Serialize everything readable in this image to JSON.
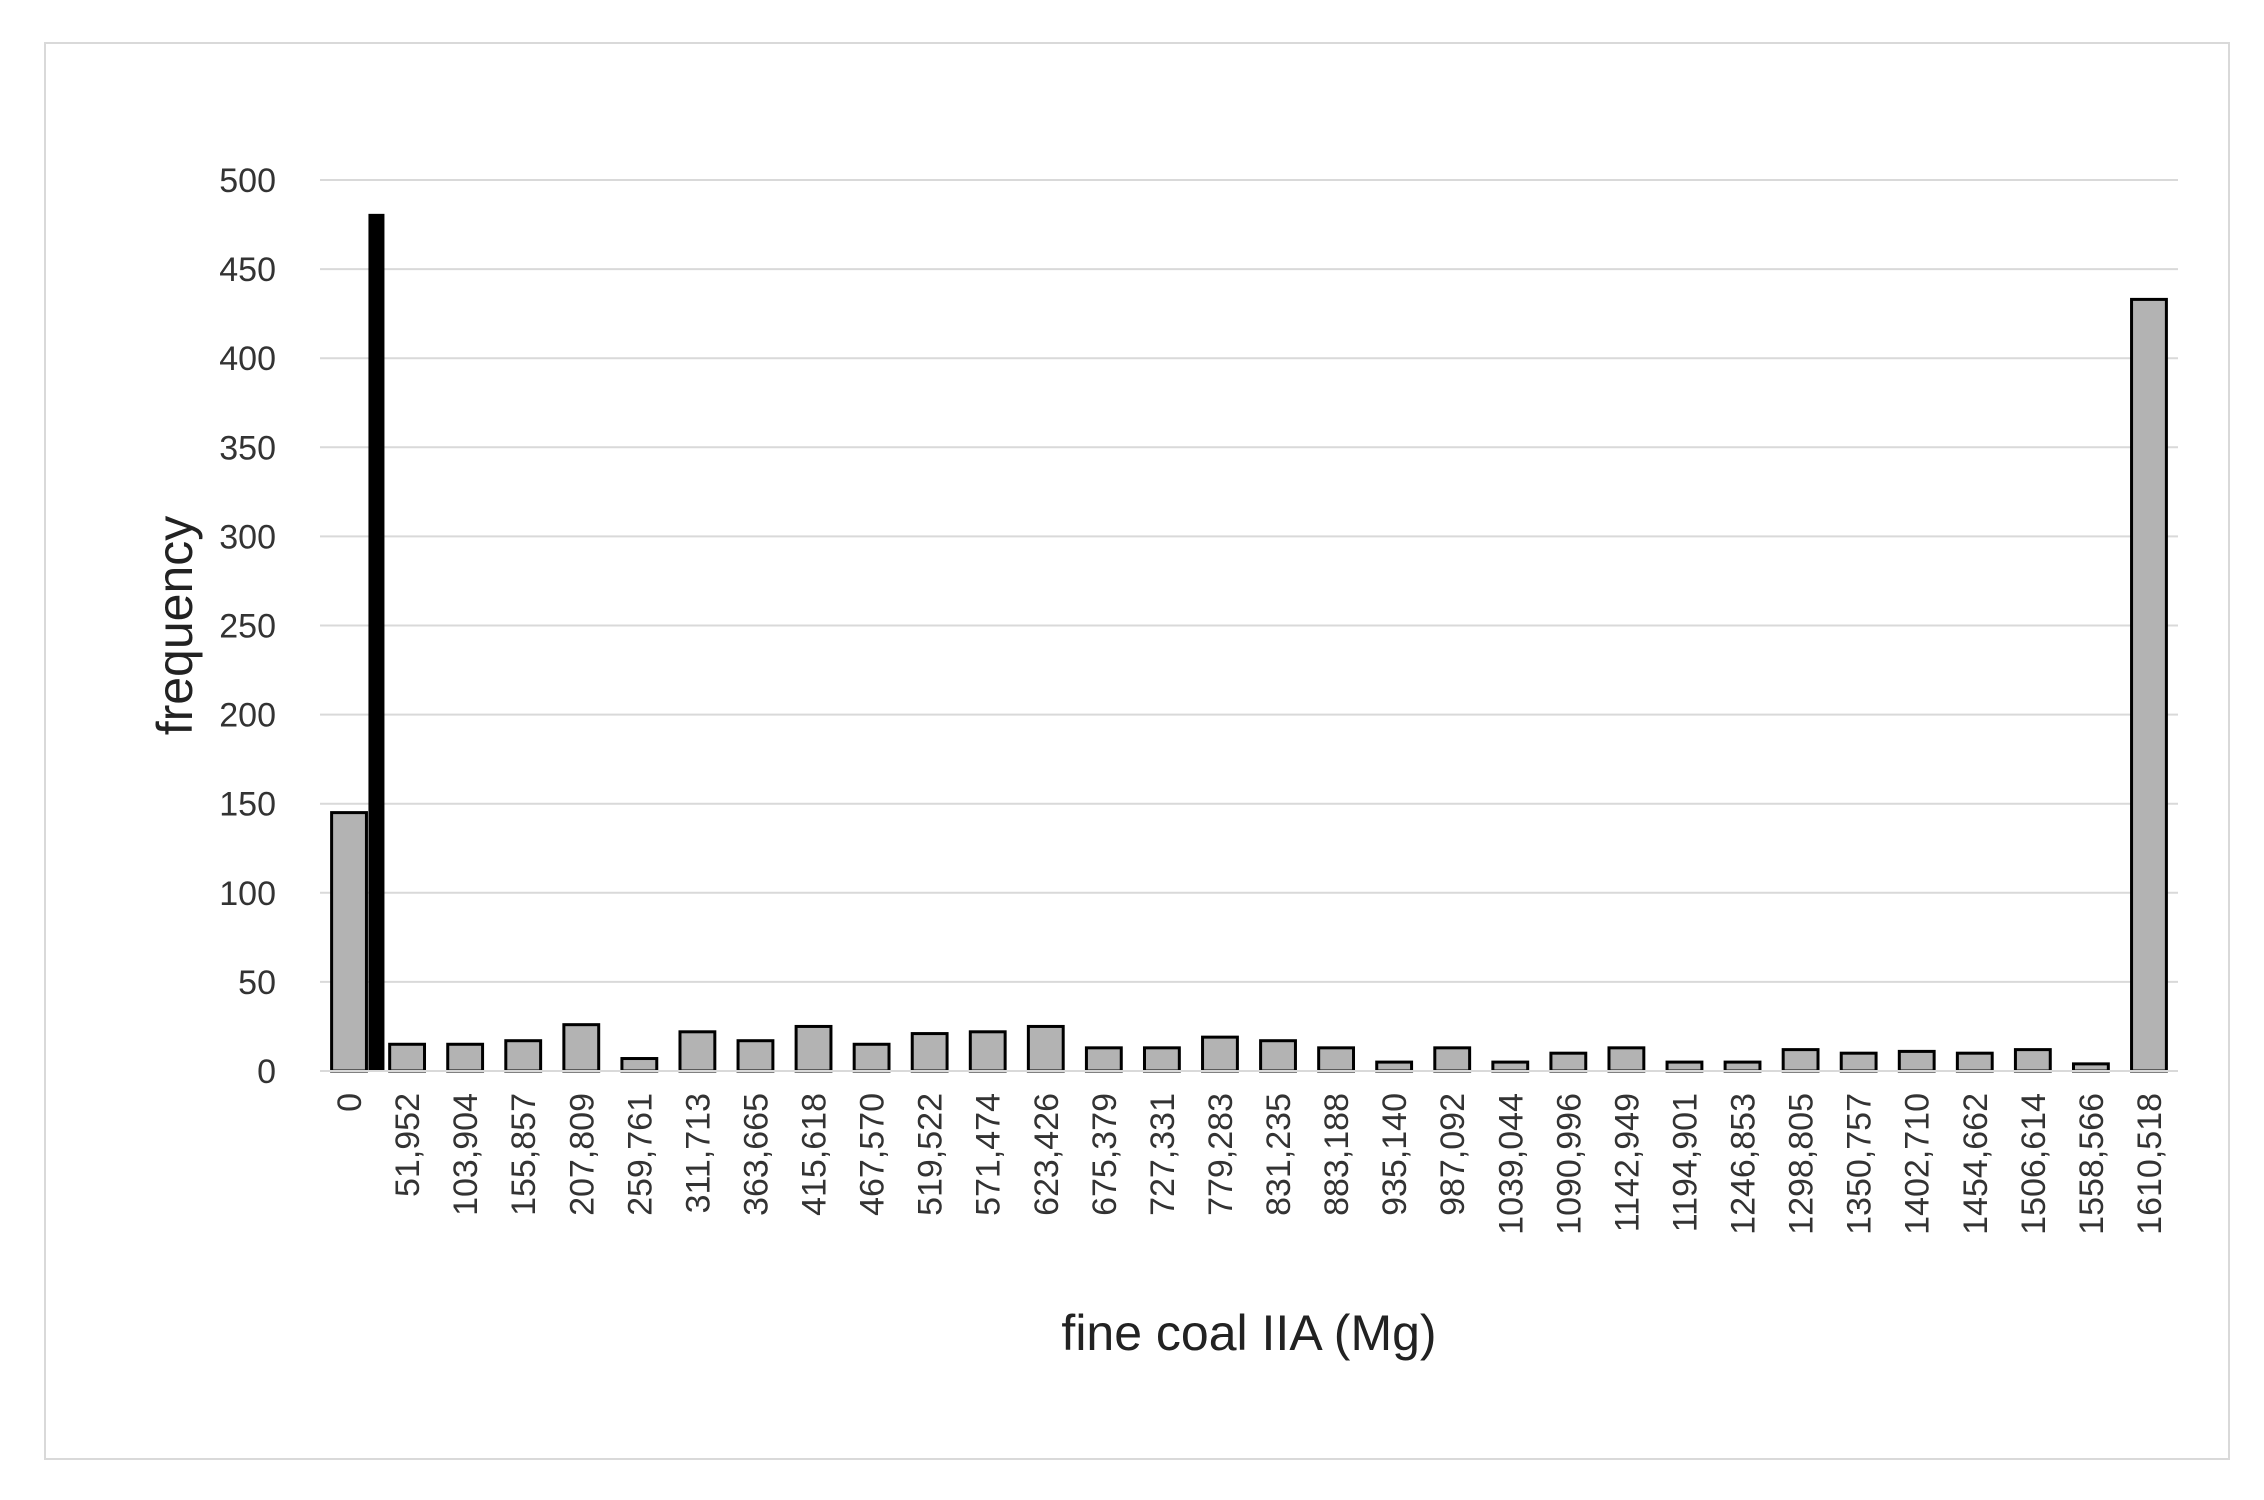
{
  "chart_data": {
    "type": "bar",
    "title": "",
    "xlabel": "fine coal IIA (Mg)",
    "ylabel": "frequency",
    "ylim": [
      0,
      500
    ],
    "yticks": [
      "0",
      "50",
      "100",
      "150",
      "200",
      "250",
      "300",
      "350",
      "400",
      "450",
      "500"
    ],
    "grid": true,
    "categories": [
      "0",
      "51,952",
      "103,904",
      "155,857",
      "207,809",
      "259,761",
      "311,713",
      "363,665",
      "415,618",
      "467,570",
      "519,522",
      "571,474",
      "623,426",
      "675,379",
      "727,331",
      "779,283",
      "831,235",
      "883,188",
      "935,140",
      "987,092",
      "1039,044",
      "1090,996",
      "1142,949",
      "1194,901",
      "1246,853",
      "1298,805",
      "1350,757",
      "1402,710",
      "1454,662",
      "1506,614",
      "1558,566",
      "1610,518"
    ],
    "values": [
      145,
      15,
      15,
      17,
      26,
      7,
      22,
      17,
      25,
      15,
      21,
      22,
      25,
      13,
      13,
      19,
      17,
      13,
      5,
      13,
      5,
      10,
      13,
      5,
      5,
      12,
      10,
      11,
      10,
      12,
      4,
      433
    ],
    "highlight": {
      "category_index": 0,
      "value": 481
    },
    "colors": {
      "bar_fill": "#b3b3b3",
      "bar_stroke": "#000000",
      "highlight": "#000000",
      "grid": "#d9d9d9"
    }
  }
}
